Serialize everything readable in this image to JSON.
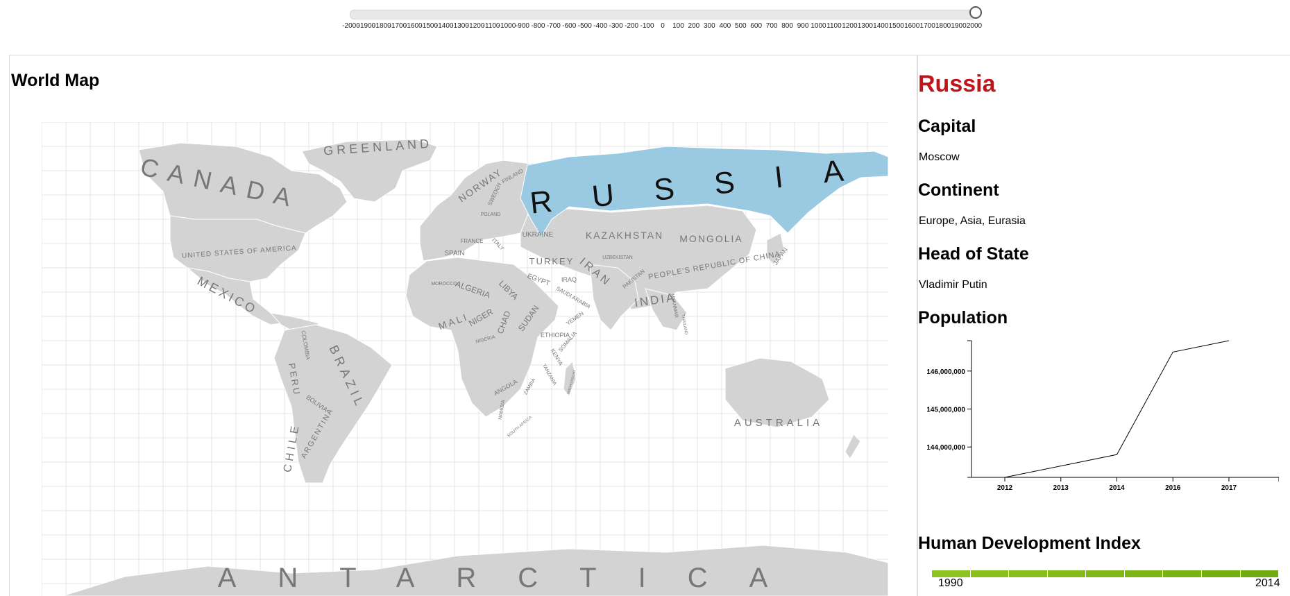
{
  "timeline": {
    "ticks": [
      "-2000",
      "-1900",
      "-1800",
      "-1700",
      "-1600",
      "-1500",
      "-1400",
      "-1300",
      "-1200",
      "-1100",
      "-1000",
      "-900",
      "-800",
      "-700",
      "-600",
      "-500",
      "-400",
      "-300",
      "-200",
      "-100",
      "0",
      "100",
      "200",
      "300",
      "400",
      "500",
      "600",
      "700",
      "800",
      "900",
      "1000",
      "1100",
      "1200",
      "1300",
      "1400",
      "1500",
      "1600",
      "1700",
      "1800",
      "1900",
      "2000"
    ],
    "selected": "2000"
  },
  "map": {
    "title": "World Map",
    "highlight_color": "#9ac9e2",
    "land_color": "#d3d3d3",
    "grid_color": "#e4e4e4",
    "country_labels": [
      "CANADA",
      "GREENLAND",
      "UNITED STATES OF AMERICA",
      "MEXICO",
      "BRAZIL",
      "PERU",
      "COLOMBIA",
      "BOLIVIA",
      "CHILE",
      "ARGENTINA",
      "NORWAY",
      "SWEDEN",
      "FINLAND",
      "POLAND",
      "UKRAINE",
      "FRANCE",
      "ITALY",
      "SPAIN",
      "TURKEY",
      "KAZAKHSTAN",
      "MONGOLIA",
      "PEOPLE'S REPUBLIC OF CHINA",
      "IRAN",
      "IRAQ",
      "PAKISTAN",
      "INDIA",
      "SAUDI ARABIA",
      "EGYPT",
      "LIBYA",
      "ALGERIA",
      "MOROCCO",
      "MALI",
      "NIGER",
      "CHAD",
      "SUDAN",
      "NIGERIA",
      "ETHIOPIA",
      "YEMEN",
      "SOMALIA",
      "KENYA",
      "TANZANIA",
      "ANGOLA",
      "ZAMBIA",
      "NAMIBIA",
      "SOUTH AFRICA",
      "MADAGASCAR",
      "MYANMAR",
      "THAILAND",
      "UZBEKISTAN",
      "JAPAN",
      "AUSTRALIA",
      "ANTARCTICA"
    ],
    "selected_label": "RUSSIA"
  },
  "info": {
    "country": "Russia",
    "capital_heading": "Capital",
    "capital": "Moscow",
    "continent_heading": "Continent",
    "continent": "Europe, Asia, Eurasia",
    "head_heading": "Head of State",
    "head_of_state": "Vladimir Putin",
    "population_heading": "Population",
    "hdi_heading": "Human Development Index",
    "hdi_start": "1990",
    "hdi_end": "2014"
  },
  "chart_data": {
    "type": "line",
    "title": "Population",
    "categories": [
      "2012",
      "2013",
      "2014",
      "2016",
      "2017"
    ],
    "values": [
      143200000,
      143500000,
      143800000,
      146500000,
      146800000
    ],
    "ytick_labels": [
      "146,000,000",
      "145,000,000",
      "144,000,000"
    ],
    "yticks": [
      146000000,
      145000000,
      144000000
    ],
    "ylim": [
      143200000,
      146800000
    ],
    "grid": false
  },
  "hdi_colors": [
    "#8dc21f",
    "#8cc11d",
    "#88be1b",
    "#84bb19",
    "#80b817",
    "#7cb515",
    "#78b213",
    "#74af11",
    "#70ac0f"
  ]
}
